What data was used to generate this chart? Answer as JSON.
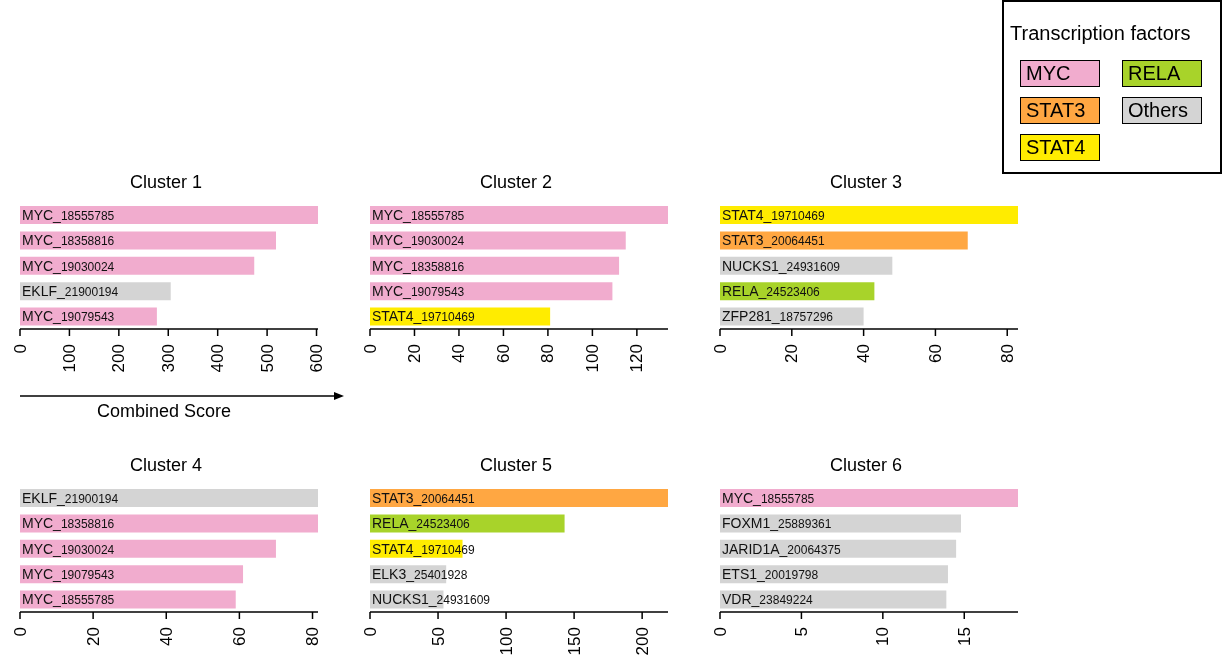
{
  "chart_data": [
    {
      "type": "bar",
      "orientation": "horizontal",
      "title": "Cluster 1",
      "xlabel": "Combined Score",
      "legend": "top right",
      "legend_title": "Transcription factors",
      "categories": [
        "MYC_18555785",
        "MYC_18358816",
        "MYC_19030024",
        "EKLF_21900194",
        "MYC_19079543"
      ],
      "xlim": [
        0,
        603
      ],
      "xticks": [
        0,
        100,
        200,
        300,
        400,
        500,
        600
      ],
      "series": [
        {
          "name": "MYC",
          "color": "#f1acce",
          "values": [
            603,
            518,
            474,
            null,
            277
          ]
        },
        {
          "color": "#d4d4d4",
          "values": [
            null,
            null,
            null,
            305,
            null
          ]
        }
      ]
    },
    {
      "type": "bar",
      "orientation": "horizontal",
      "title": "Cluster 2",
      "categories": [
        "MYC_18555785",
        "MYC_19030024",
        "MYC_18358816",
        "MYC_19079543",
        "STAT4_19710469"
      ],
      "xlim": [
        0,
        134
      ],
      "xticks": [
        0,
        20,
        40,
        60,
        80,
        100,
        120
      ],
      "series": [
        {
          "color": "#f1acce",
          "values": [
            134,
            115,
            112,
            109,
            null
          ]
        },
        {
          "color": "#ffec00",
          "values": [
            null,
            null,
            null,
            null,
            81
          ]
        }
      ]
    },
    {
      "type": "bar",
      "orientation": "horizontal",
      "title": "Cluster 3",
      "legend": "top right",
      "categories": [
        "STAT4_19710469",
        "STAT3_20064451",
        "NUCKS1_24931609",
        "RELA_24523406",
        "ZFP281_18757296"
      ],
      "xlim": [
        0,
        83
      ],
      "xticks": [
        0,
        20,
        40,
        60,
        80
      ],
      "series": [
        {
          "name": "STAT3",
          "color": "#ffa742",
          "values": [
            null,
            69,
            null,
            null,
            null
          ]
        },
        {
          "name": "STAT4",
          "color": "#ffec00",
          "values": [
            83,
            null,
            null,
            null,
            null
          ]
        },
        {
          "name": "RELA",
          "color": "#a8d32a",
          "values": [
            null,
            null,
            null,
            43,
            null
          ]
        },
        {
          "name": "Others",
          "color": "#d4d4d4",
          "values": [
            null,
            null,
            48,
            null,
            40
          ]
        }
      ]
    },
    {
      "type": "bar",
      "orientation": "horizontal",
      "title": "Cluster 4",
      "categories": [
        "EKLF_21900194",
        "MYC_18358816",
        "MYC_19030024",
        "MYC_19079543",
        "MYC_18555785"
      ],
      "xlim": [
        0,
        81.5
      ],
      "xticks": [
        0,
        20,
        40,
        60,
        80
      ],
      "series": [
        {
          "color": "#d4d4d4",
          "values": [
            81.5,
            null,
            null,
            null,
            null
          ]
        },
        {
          "color": "#f1acce",
          "values": [
            null,
            81.5,
            70,
            61,
            59
          ]
        }
      ]
    },
    {
      "type": "bar",
      "orientation": "horizontal",
      "title": "Cluster 5",
      "categories": [
        "STAT3_20064451",
        "RELA_24523406",
        "STAT4_19710469",
        "ELK3_25401928",
        "NUCKS1_24931609"
      ],
      "xlim": [
        0,
        219
      ],
      "xticks": [
        0,
        50,
        100,
        150,
        200
      ],
      "series": [
        {
          "color": "#ffa742",
          "values": [
            219,
            null,
            null,
            null,
            null
          ]
        },
        {
          "color": "#a8d32a",
          "values": [
            null,
            143,
            null,
            null,
            null
          ]
        },
        {
          "color": "#ffec00",
          "values": [
            null,
            null,
            68,
            null,
            null
          ]
        },
        {
          "color": "#d4d4d4",
          "values": [
            null,
            null,
            null,
            56,
            54
          ]
        }
      ]
    },
    {
      "type": "bar",
      "orientation": "horizontal",
      "title": "Cluster 6",
      "categories": [
        "MYC_18555785",
        "FOXM1_25889361",
        "JARID1A_20064375",
        "ETS1_20019798",
        "VDR_23849224"
      ],
      "xlim": [
        0,
        18.3
      ],
      "xticks": [
        0,
        5,
        10,
        15
      ],
      "series": [
        {
          "color": "#f1acce",
          "values": [
            18.3,
            null,
            null,
            null,
            null
          ]
        },
        {
          "color": "#d4d4d4",
          "values": [
            null,
            14.8,
            14.5,
            14.0,
            13.9
          ]
        }
      ]
    }
  ]
}
